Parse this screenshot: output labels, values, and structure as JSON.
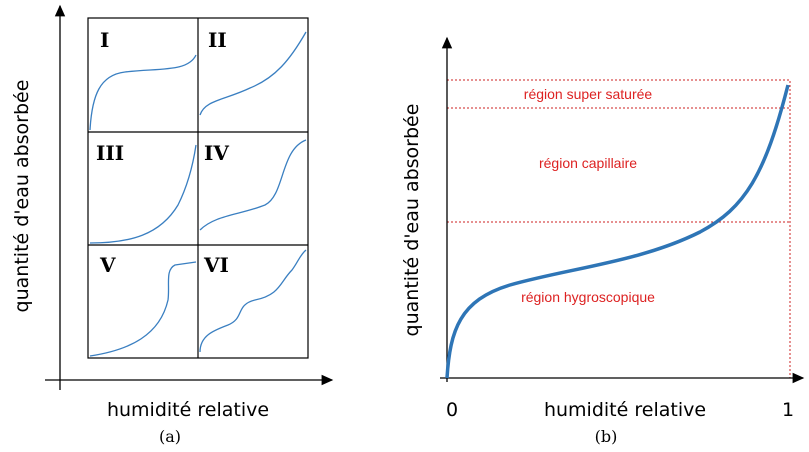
{
  "panel_a": {
    "caption": "(a)",
    "y_label": "quantité d'eau absorbée",
    "x_label": "humidité relative",
    "types": [
      "I",
      "II",
      "III",
      "IV",
      "V",
      "VI"
    ]
  },
  "panel_b": {
    "caption": "(b)",
    "y_label": "quantité d'eau absorbée",
    "x_label": "humidité relative",
    "x_start": "0",
    "x_end": "1",
    "regions": [
      "région super saturée",
      "région capillaire",
      "région hygroscopique"
    ]
  }
}
